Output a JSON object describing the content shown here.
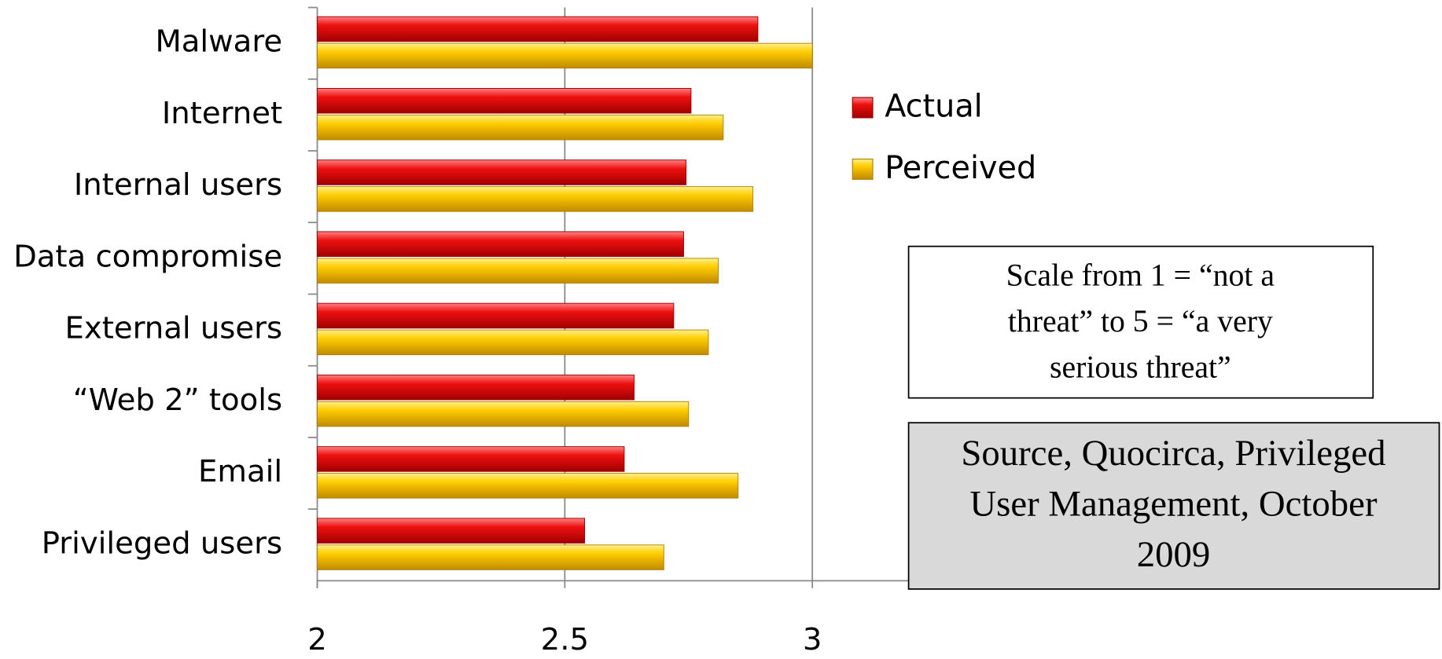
{
  "chart_data": {
    "type": "bar",
    "orientation": "horizontal",
    "categories": [
      "Malware",
      "Internet",
      "Internal users",
      "Data compromise",
      "External users",
      "“Web 2” tools",
      "Email",
      "Privileged users"
    ],
    "series": [
      {
        "name": "Actual",
        "color": "#e8101a",
        "values": [
          2.89,
          2.755,
          2.745,
          2.74,
          2.72,
          2.64,
          2.62,
          2.54
        ]
      },
      {
        "name": "Perceived",
        "color": "#ffcc00",
        "values": [
          3.0,
          2.82,
          2.88,
          2.81,
          2.79,
          2.75,
          2.85,
          2.7
        ]
      }
    ],
    "xlim": [
      2,
      3.2
    ],
    "xticks": [
      2,
      2.5,
      3
    ],
    "grid": true,
    "note": [
      "Scale from 1 = “not a",
      "threat” to 5 = “a very",
      "serious threat”"
    ],
    "source": [
      "Source, Quocirca, Privileged",
      "User Management, October",
      "2009"
    ]
  }
}
